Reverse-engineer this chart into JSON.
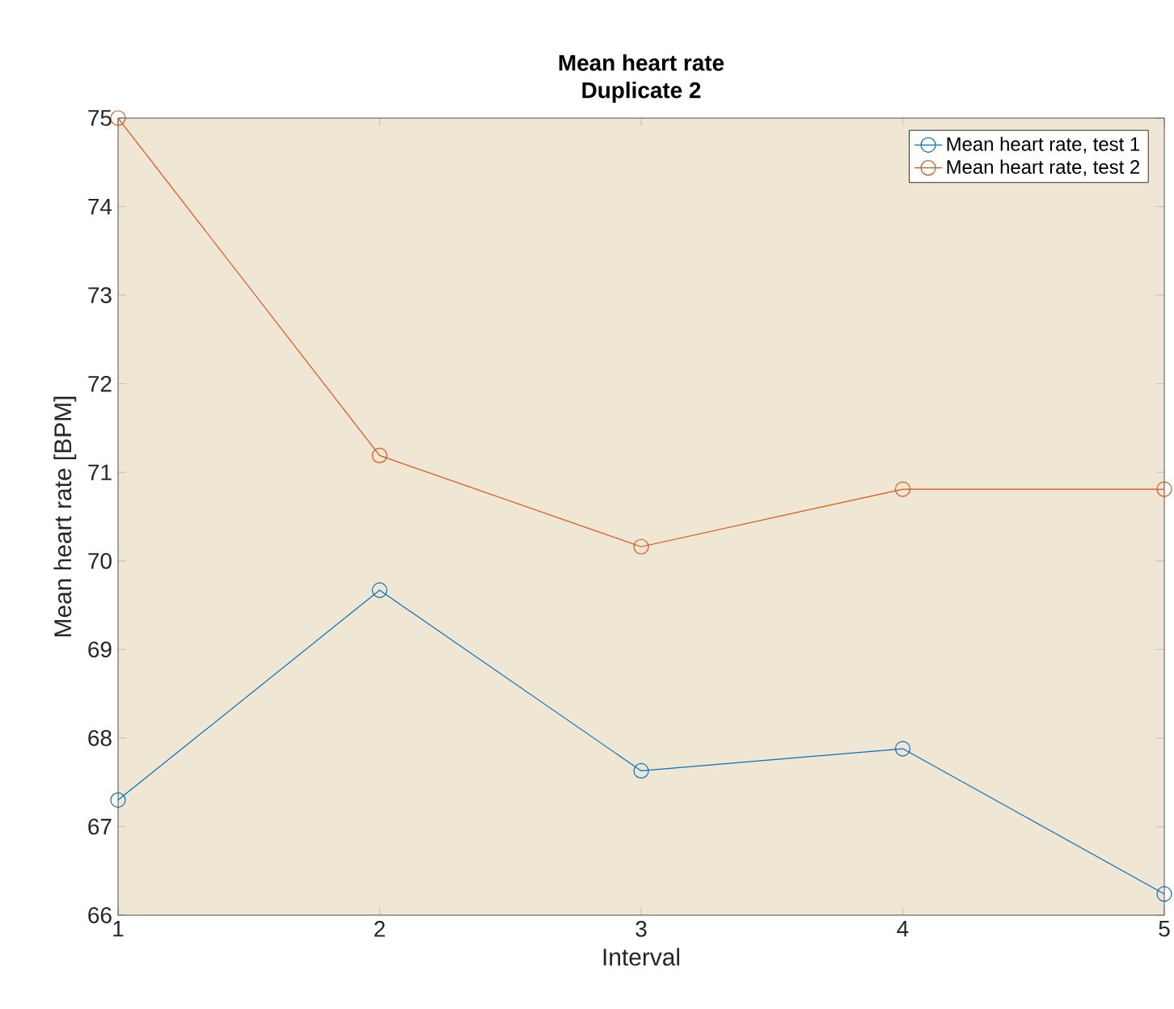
{
  "chart_data": {
    "type": "line",
    "title": "Mean heart rate",
    "subtitle": "Duplicate 2",
    "xlabel": "Interval",
    "ylabel": "Mean heart rate [BPM]",
    "x": [
      1,
      2,
      3,
      4,
      5
    ],
    "series": [
      {
        "name": "Mean heart rate, test 1",
        "color": "#0072bd",
        "values": [
          67.3,
          69.67,
          67.63,
          67.88,
          66.24
        ]
      },
      {
        "name": "Mean heart rate, test 2",
        "color": "#d95319",
        "values": [
          75.0,
          71.19,
          70.16,
          70.81,
          70.81
        ]
      }
    ],
    "xlim": [
      1,
      5
    ],
    "ylim": [
      66,
      75
    ],
    "xticks": [
      1,
      2,
      3,
      4,
      5
    ],
    "yticks": [
      66,
      67,
      68,
      69,
      70,
      71,
      72,
      73,
      74,
      75
    ],
    "legend": "top right",
    "marker": "circle",
    "line_style": "solid"
  }
}
